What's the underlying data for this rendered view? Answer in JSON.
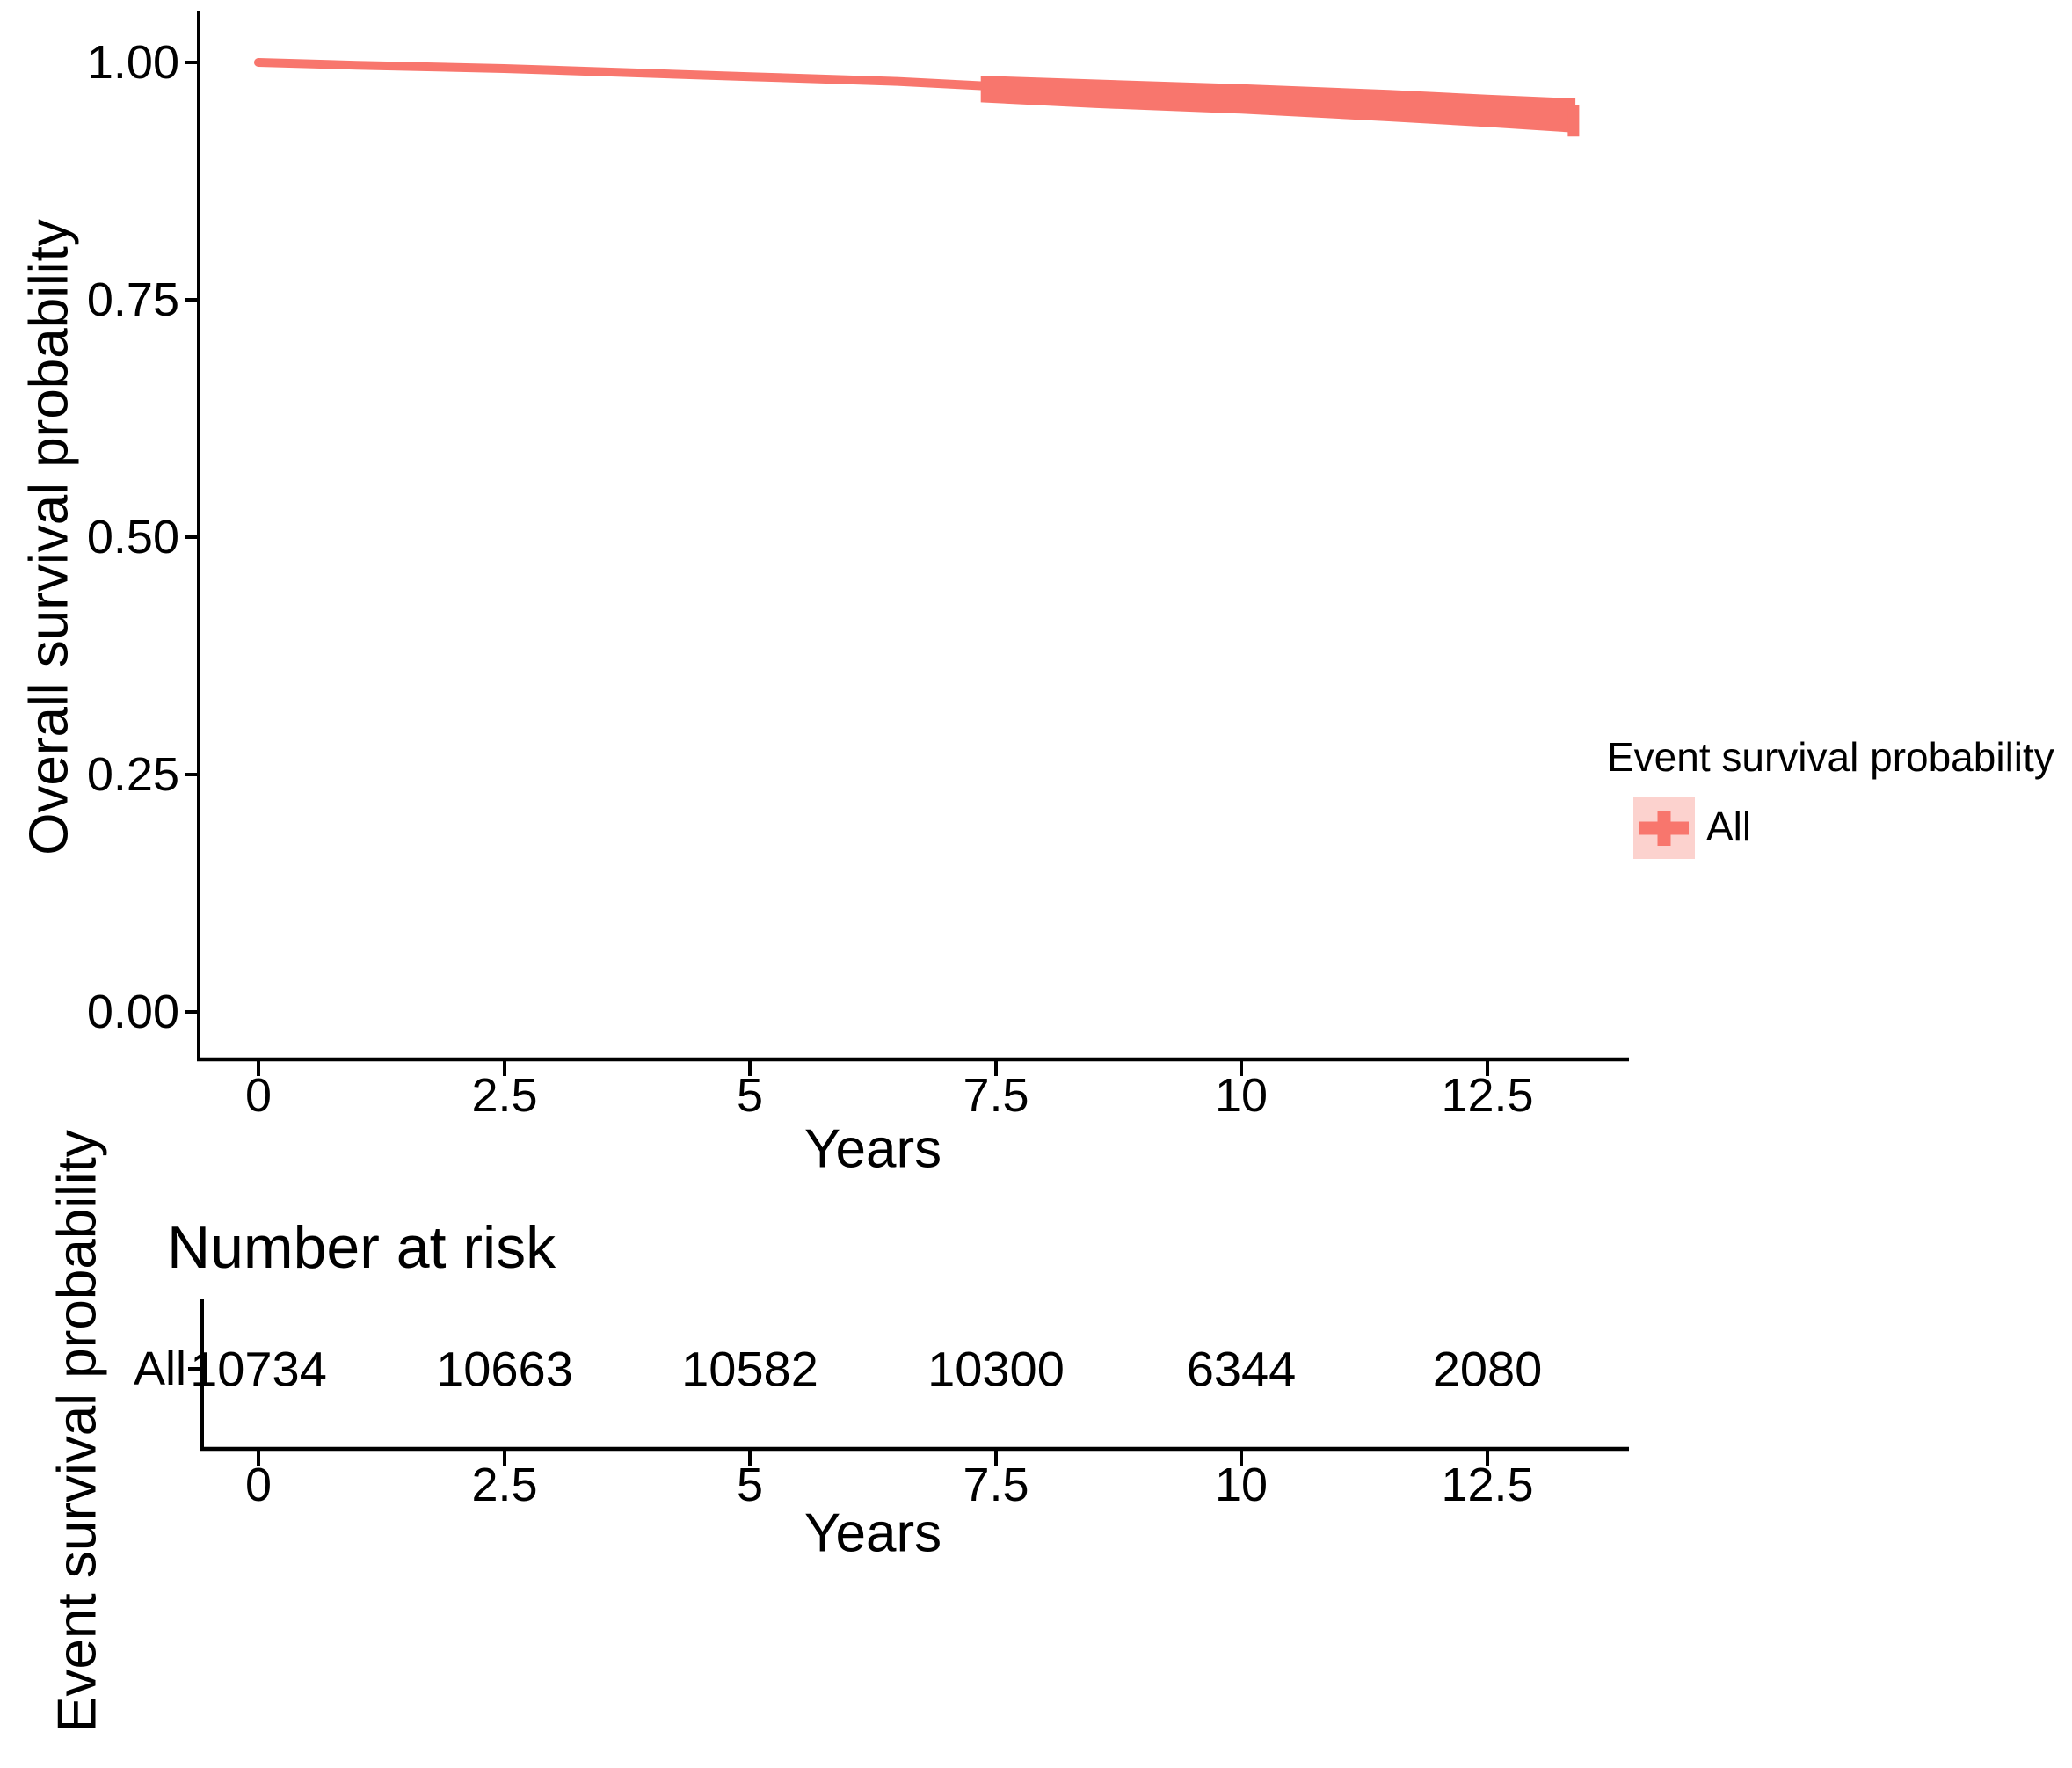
{
  "colors": {
    "accent": "#F8766D",
    "legend_key_bg": "#FCD2CE",
    "axis": "#000000",
    "text": "#000000"
  },
  "main_plot": {
    "ylabel": "Overall survival probability",
    "xlabel": "Years",
    "y_tick_labels": [
      "1.00",
      "0.75",
      "0.50",
      "0.25",
      "0.00"
    ],
    "x_tick_labels": [
      "0",
      "2.5",
      "5",
      "7.5",
      "10",
      "12.5"
    ]
  },
  "legend": {
    "title": "Event survival probability",
    "items": [
      {
        "label": "All",
        "color": "#F8766D",
        "key_bg": "#FCD2CE",
        "key_glyph": "plus-icon"
      }
    ]
  },
  "risk_table": {
    "title": "Number at risk",
    "axis_label": "Event survival probability",
    "xlabel": "Years",
    "x_tick_labels": [
      "0",
      "2.5",
      "5",
      "7.5",
      "10",
      "12.5"
    ],
    "rows": [
      {
        "label": "All",
        "color": "#F8766D",
        "values": [
          "10734",
          "10663",
          "10582",
          "10300",
          "6344",
          "2080"
        ]
      }
    ]
  },
  "chart_data": {
    "type": "line",
    "subtype": "kaplan-meier-survival-curve",
    "title": "",
    "xlabel": "Years",
    "ylabel": "Overall survival probability",
    "xlim": [
      -0.6,
      13.9
    ],
    "ylim": [
      -0.05,
      1.05
    ],
    "x_ticks": [
      0,
      2.5,
      5,
      7.5,
      10,
      12.5
    ],
    "y_ticks": [
      0.0,
      0.25,
      0.5,
      0.75,
      1.0
    ],
    "grid": false,
    "legend_position": "right",
    "legend_title": "Event survival probability",
    "series": [
      {
        "name": "All",
        "color": "#F8766D",
        "x": [
          0,
          1,
          2.5,
          5,
          6.5,
          7.35,
          8.5,
          10,
          11.5,
          12.5,
          13.4
        ],
        "y": [
          1.0,
          0.997,
          0.9935,
          0.985,
          0.98,
          0.9755,
          0.967,
          0.9615,
          0.9545,
          0.949,
          0.944
        ],
        "ci_upper": [
          null,
          null,
          null,
          null,
          null,
          0.986,
          0.982,
          0.977,
          0.971,
          0.966,
          0.962
        ],
        "ci_lower": [
          null,
          null,
          null,
          null,
          null,
          0.958,
          0.952,
          0.946,
          0.938,
          0.932,
          0.926
        ],
        "end_censor": {
          "x": 13.38,
          "upper": 0.955,
          "lower": 0.922
        }
      }
    ],
    "risk_table": {
      "title": "Number at risk",
      "times": [
        0,
        2.5,
        5,
        7.5,
        10,
        12.5
      ],
      "series": [
        {
          "name": "All",
          "n_at_risk": [
            10734,
            10663,
            10582,
            10300,
            6344,
            2080
          ]
        }
      ]
    }
  }
}
